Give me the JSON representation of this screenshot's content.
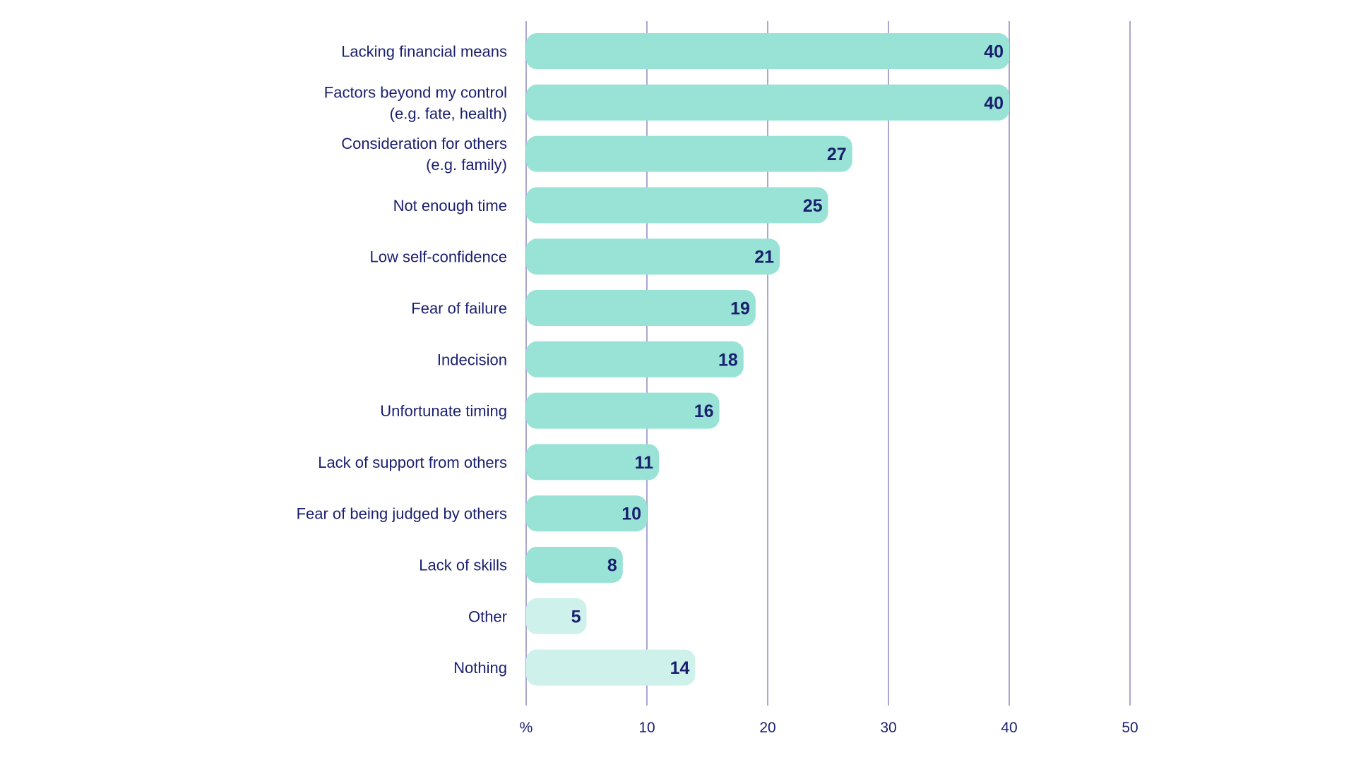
{
  "chart_data": {
    "type": "bar",
    "orientation": "horizontal",
    "categories": [
      [
        "Lacking financial means"
      ],
      [
        "Factors beyond my control",
        "(e.g. fate, health)"
      ],
      [
        "Consideration for others",
        "(e.g. family)"
      ],
      [
        "Not enough time"
      ],
      [
        "Low self-confidence"
      ],
      [
        "Fear of failure"
      ],
      [
        "Indecision"
      ],
      [
        "Unfortunate timing"
      ],
      [
        "Lack of support from others"
      ],
      [
        "Fear of being judged by others"
      ],
      [
        "Lack of skills"
      ],
      [
        "Other"
      ],
      [
        "Nothing"
      ]
    ],
    "values": [
      40,
      40,
      27,
      25,
      21,
      19,
      18,
      16,
      11,
      10,
      8,
      5,
      14
    ],
    "value_labels": [
      "40",
      "40",
      "27",
      "25",
      "21",
      "19",
      "18",
      "16",
      "11",
      "10",
      "8",
      "5",
      "14"
    ],
    "highlight_style": [
      "main",
      "main",
      "main",
      "main",
      "main",
      "main",
      "main",
      "main",
      "main",
      "main",
      "main",
      "light",
      "light"
    ],
    "x_ticks": [
      {
        "value": 0,
        "label": "%"
      },
      {
        "value": 10,
        "label": "10"
      },
      {
        "value": 20,
        "label": "20"
      },
      {
        "value": 30,
        "label": "30"
      },
      {
        "value": 40,
        "label": "40"
      },
      {
        "value": 50,
        "label": "50"
      }
    ],
    "xlim": [
      0,
      50
    ],
    "grid": true,
    "title": "",
    "xlabel": "",
    "ylabel": ""
  },
  "colors": {
    "bar_main": "#98e3d6",
    "bar_light": "#cef1eb",
    "text": "#1a1f6e",
    "grid": "#a9a7d2"
  }
}
